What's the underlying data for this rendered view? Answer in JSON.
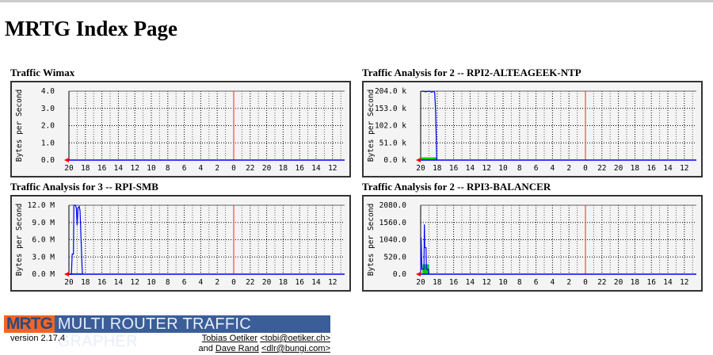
{
  "page": {
    "title": "MRTG Index Page"
  },
  "graphs": [
    {
      "title": "Traffic Wimax",
      "ylabel": "Bytes per Second",
      "yticks": [
        "0.0",
        "1.0",
        "2.0",
        "3.0",
        "4.0"
      ],
      "ymax": 4,
      "xticks": [
        "20",
        "18",
        "16",
        "14",
        "12",
        "10",
        "8",
        "6",
        "4",
        "2",
        "0",
        "22",
        "20",
        "18",
        "16",
        "14",
        "12"
      ],
      "in": [],
      "out": []
    },
    {
      "title": "Traffic Analysis for 2 -- RPI2-ALTEAGEEK-NTP",
      "ylabel": "Bytes per Second",
      "yticks": [
        "0.0 k",
        "51.0 k",
        "102.0 k",
        "153.0 k",
        "204.0 k"
      ],
      "ymax": 204000,
      "xticks": [
        "20",
        "18",
        "16",
        "14",
        "12",
        "10",
        "8",
        "6",
        "4",
        "2",
        "0",
        "22",
        "20",
        "18",
        "16",
        "14",
        "12"
      ],
      "in": [
        [
          20,
          8000
        ],
        [
          18.1,
          8000
        ],
        [
          18.05,
          0
        ]
      ],
      "out": [
        [
          20,
          203000
        ],
        [
          19.7,
          204000
        ],
        [
          19.4,
          202000
        ],
        [
          19,
          204000
        ],
        [
          18.7,
          201000
        ],
        [
          18.4,
          203000
        ],
        [
          18.3,
          200000
        ],
        [
          18.2,
          153000
        ],
        [
          18.1,
          55000
        ],
        [
          18.05,
          0
        ]
      ]
    },
    {
      "title": "Traffic Analysis for 3 -- RPI-SMB",
      "ylabel": "Bytes per Second",
      "yticks": [
        "0.0 M",
        "3.0 M",
        "6.0 M",
        "9.0 M",
        "12.0 M"
      ],
      "ymax": 12000000,
      "xticks": [
        "20",
        "18",
        "16",
        "14",
        "12",
        "10",
        "8",
        "6",
        "4",
        "2",
        "0",
        "22",
        "20",
        "18",
        "16",
        "14",
        "12"
      ],
      "in": [
        [
          20,
          150000
        ],
        [
          18.4,
          150000
        ],
        [
          18.35,
          0
        ]
      ],
      "out": [
        [
          20,
          0
        ],
        [
          19.7,
          0
        ],
        [
          19.6,
          3500000
        ],
        [
          19.45,
          3500000
        ],
        [
          19.4,
          12000000
        ],
        [
          19.2,
          12000000
        ],
        [
          19.1,
          11500000
        ],
        [
          19.0,
          8500000
        ],
        [
          18.9,
          11500000
        ],
        [
          18.75,
          11800000
        ],
        [
          18.65,
          11000000
        ],
        [
          18.4,
          1000000
        ],
        [
          18.35,
          0
        ]
      ]
    },
    {
      "title": "Traffic Analysis for 2 -- RPI3-BALANCER",
      "ylabel": "Bytes per Second",
      "yticks": [
        "0.0",
        "520.0",
        "1040.0",
        "1560.0",
        "2080.0"
      ],
      "ymax": 2080,
      "xticks": [
        "20",
        "18",
        "16",
        "14",
        "12",
        "10",
        "8",
        "6",
        "4",
        "2",
        "0",
        "22",
        "20",
        "18",
        "16",
        "14",
        "12"
      ],
      "in": [
        [
          20,
          0
        ],
        [
          19.8,
          0
        ],
        [
          19.75,
          300
        ],
        [
          19.0,
          300
        ],
        [
          18.95,
          0
        ]
      ],
      "out": [
        [
          20,
          0
        ],
        [
          19.95,
          1100
        ],
        [
          19.85,
          150
        ],
        [
          19.6,
          150
        ],
        [
          19.55,
          1500
        ],
        [
          19.5,
          800
        ],
        [
          19.35,
          800
        ],
        [
          19.3,
          150
        ],
        [
          19.05,
          150
        ],
        [
          19.0,
          0
        ]
      ]
    }
  ],
  "colors": {
    "in": "#00cc00",
    "out": "#0000ff",
    "now": "#ff6666",
    "grid": "#000000"
  },
  "footer": {
    "logo": "MRTG",
    "banner": "MULTI ROUTER TRAFFIC GRAPHER",
    "version": "version 2.17.4",
    "author1": "Tobias Oetiker",
    "email1": "<tobi@oetiker.ch>",
    "and": "and",
    "author2": "Dave Rand",
    "email2": "<dlr@bungi.com>"
  }
}
